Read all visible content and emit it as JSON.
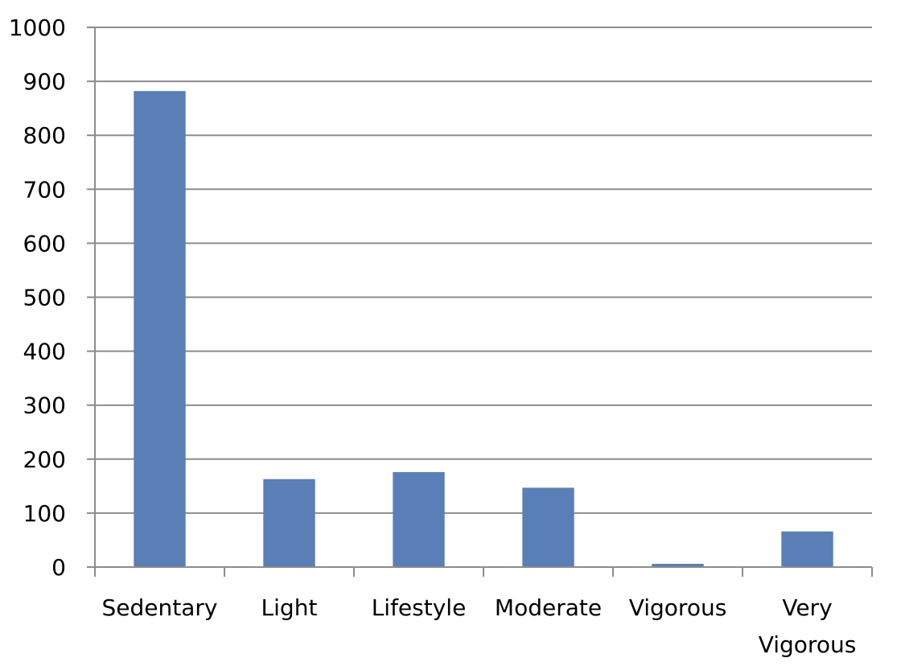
{
  "chart_data": {
    "type": "bar",
    "title": "",
    "xlabel": "",
    "ylabel": "",
    "categories": [
      [
        "Sedentary"
      ],
      [
        "Light"
      ],
      [
        "Lifestyle"
      ],
      [
        "Moderate"
      ],
      [
        "Vigorous"
      ],
      [
        "Very",
        "Vigorous"
      ]
    ],
    "values": [
      882,
      163,
      176,
      147,
      6,
      66
    ],
    "ylim": [
      0,
      1000
    ],
    "yticks": [
      "0",
      "100",
      "200",
      "300",
      "400",
      "500",
      "600",
      "700",
      "800",
      "900",
      "1000"
    ],
    "grid": true,
    "legend": "none",
    "colors": {
      "bar": "#5a7fb6",
      "grid": "#8c8c8c",
      "axis": "#8c8c8c",
      "text": "#000000"
    }
  }
}
